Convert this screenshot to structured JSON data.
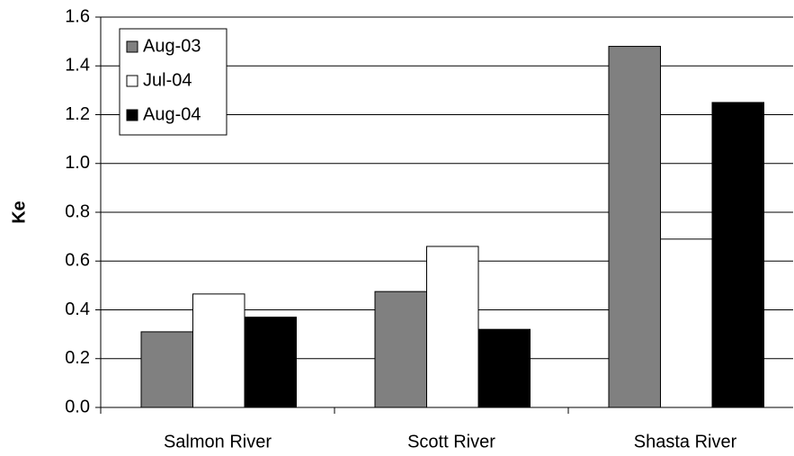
{
  "chart_data": {
    "type": "bar",
    "y_label": "Ke",
    "categories": [
      "Salmon River",
      "Scott River",
      "Shasta River"
    ],
    "series": [
      {
        "name": "Aug-03",
        "color": "#808080",
        "values": [
          0.31,
          0.475,
          1.48
        ]
      },
      {
        "name": "Jul-04",
        "color": "#ffffff",
        "values": [
          0.465,
          0.66,
          0.69
        ]
      },
      {
        "name": "Aug-04",
        "color": "#000000",
        "values": [
          0.37,
          0.32,
          1.25
        ]
      }
    ],
    "ylim": [
      0,
      1.6
    ],
    "yticks": [
      {
        "value": 0,
        "label": "0.0"
      },
      0.2,
      0.4,
      0.6,
      0.8,
      {
        "value": 1,
        "label": "1.0"
      },
      1.2,
      1.4,
      1.6
    ],
    "grid": true,
    "legend": "top-left"
  }
}
